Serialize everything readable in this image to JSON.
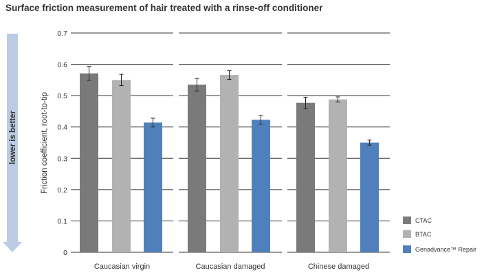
{
  "chart_data": {
    "type": "bar",
    "title": "Surface friction measurement of hair treated with a rinse-off conditioner",
    "xlabel": "",
    "ylabel": "Friction coefficient, root-to-tip",
    "ylim": [
      0,
      0.7
    ],
    "yticks": [
      "0",
      "0.1",
      "0.2",
      "0.3",
      "0.4",
      "0.5",
      "0.6",
      "0.7"
    ],
    "grid": true,
    "legend_position": "bottom-right",
    "annotation": "lower is better",
    "categories": [
      "Caucasian virgin",
      "Caucasian damaged",
      "Chinese damaged"
    ],
    "series": [
      {
        "name": "CTAC",
        "color": "#7a7a7a",
        "values": [
          0.571,
          0.535,
          0.477
        ],
        "errors": [
          0.022,
          0.02,
          0.018
        ]
      },
      {
        "name": "BTAC",
        "color": "#b2b2b2",
        "values": [
          0.55,
          0.566,
          0.488
        ],
        "errors": [
          0.018,
          0.014,
          0.008
        ]
      },
      {
        "name": "Genadvance™ Repair",
        "color": "#5080bb",
        "values": [
          0.414,
          0.423,
          0.35
        ],
        "errors": [
          0.014,
          0.014,
          0.008
        ]
      }
    ]
  }
}
